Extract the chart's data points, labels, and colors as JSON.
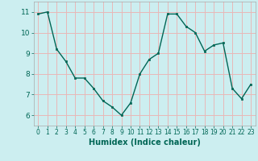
{
  "x": [
    0,
    1,
    2,
    3,
    4,
    5,
    6,
    7,
    8,
    9,
    10,
    11,
    12,
    13,
    14,
    15,
    16,
    17,
    18,
    19,
    20,
    21,
    22,
    23
  ],
  "y": [
    10.9,
    11.0,
    9.2,
    8.6,
    7.8,
    7.8,
    7.3,
    6.7,
    6.4,
    6.0,
    6.6,
    8.0,
    8.7,
    9.0,
    10.9,
    10.9,
    10.3,
    10.0,
    9.1,
    9.4,
    9.5,
    7.3,
    6.8,
    7.5
  ],
  "xlabel": "Humidex (Indice chaleur)",
  "ylim": [
    5.5,
    11.5
  ],
  "xlim": [
    -0.5,
    23.5
  ],
  "yticks": [
    6,
    7,
    8,
    9,
    10,
    11
  ],
  "xticks": [
    0,
    1,
    2,
    3,
    4,
    5,
    6,
    7,
    8,
    9,
    10,
    11,
    12,
    13,
    14,
    15,
    16,
    17,
    18,
    19,
    20,
    21,
    22,
    23
  ],
  "line_color": "#006655",
  "marker_color": "#006655",
  "bg_color": "#cceef0",
  "grid_color": "#e8b8b8",
  "tick_color": "#006655",
  "xlabel_color": "#006655"
}
